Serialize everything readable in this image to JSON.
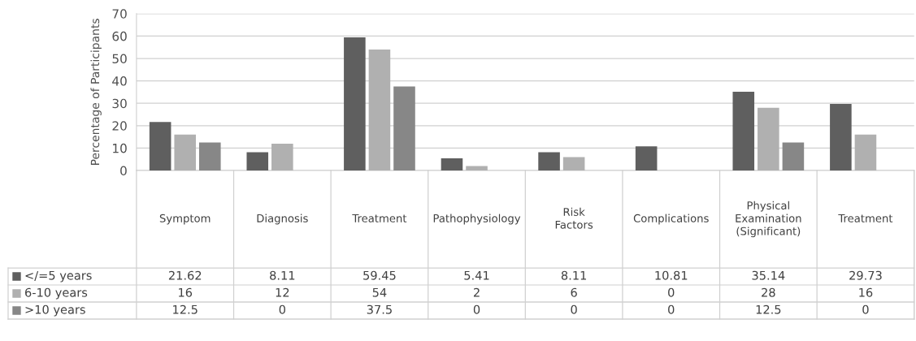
{
  "chart_data": {
    "type": "bar",
    "ylabel": "Percentage of Participants",
    "categories": [
      "Symptom",
      "Diagnosis",
      "Treatment",
      "Pathophysiology",
      "Risk Factors",
      "Complications",
      "Physical Examination (Significant)",
      "Treatment"
    ],
    "series": [
      {
        "name": "</=5 years",
        "color": "#5f5f5f",
        "values": [
          21.62,
          8.11,
          59.45,
          5.41,
          8.11,
          10.81,
          35.14,
          29.73
        ]
      },
      {
        "name": "6-10 years",
        "color": "#b0b0b0",
        "values": [
          16,
          12,
          54,
          2,
          6,
          0,
          28,
          16
        ]
      },
      {
        "name": ">10 years",
        "color": "#878787",
        "values": [
          12.5,
          0,
          37.5,
          0,
          0,
          0,
          12.5,
          0
        ]
      }
    ],
    "ylim": [
      0,
      70
    ],
    "yticks": [
      0,
      10,
      20,
      30,
      40,
      50,
      60,
      70
    ],
    "grid": "y",
    "data_labels": true,
    "legend": "bottom"
  }
}
